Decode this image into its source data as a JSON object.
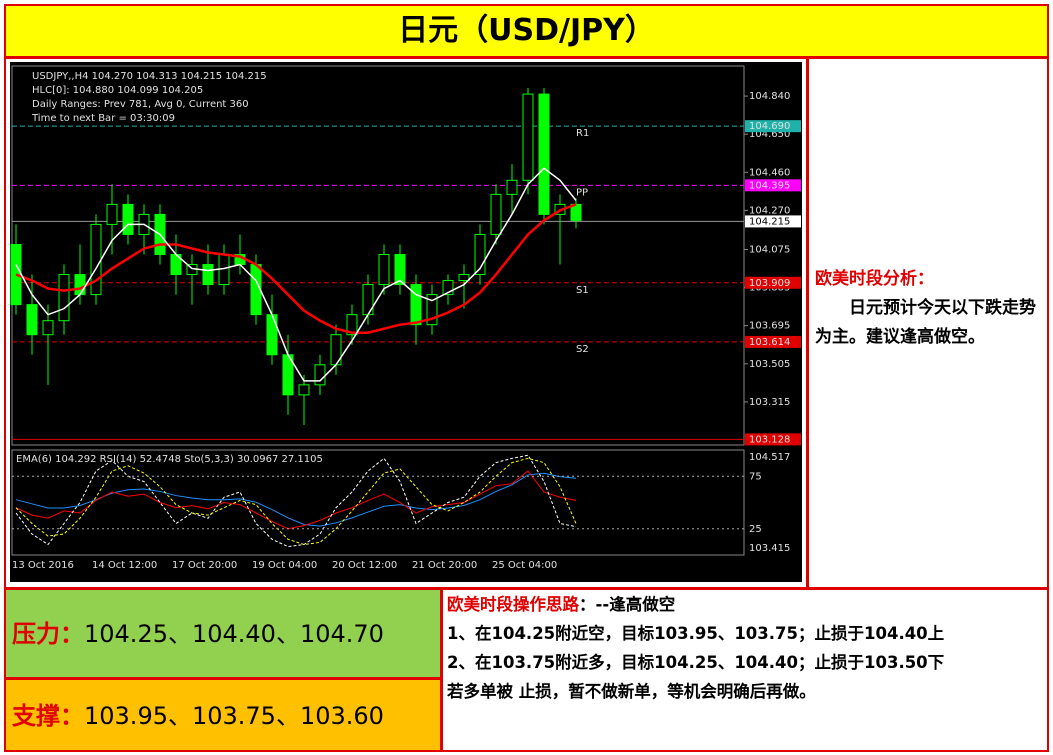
{
  "title": "日元（USD/JPY）",
  "side": {
    "heading": "欧美时段分析：",
    "text": "日元预计今天以下跌走势为主。建议逢高做空。"
  },
  "pressure": {
    "label": "压力：",
    "text": "104.25、104.40、104.70"
  },
  "support": {
    "label": "支撑：",
    "text": "103.95、103.75、103.60"
  },
  "ops": {
    "heading": "欧美时段操作思路",
    "heading_rest": "：--逢高做空",
    "lines": [
      "1、在104.25附近空，目标103.95、103.75；止损于104.40上",
      "2、在103.75附近多，目标104.25、104.40；止损于103.50下",
      "若多单被 止损，暂不做新单，等机会明确后再做。"
    ]
  },
  "chart_data": {
    "type": "candlestick",
    "header": [
      "USDJPY,,H4  104.270 104.313 104.215 104.215",
      "HLC[0]: 104.880 104.099 104.205",
      "Daily Ranges:  Prev 781,  Avg 0,  Current 360",
      "Time to next Bar = 03:30:09"
    ],
    "osc_header": "EMA(6) 104.292  RSI(14) 52.4748  Sto(5,3,3) 30.0967 27.1105",
    "x_labels": [
      "13 Oct 2016",
      "14 Oct 12:00",
      "17 Oct 20:00",
      "19 Oct 04:00",
      "20 Oct 12:00",
      "21 Oct 20:00",
      "25 Oct 04:00"
    ],
    "ylim": [
      103.1,
      104.99
    ],
    "yticks": [
      {
        "value": 104.84,
        "label": "104.840"
      },
      {
        "value": 104.65,
        "label": "104.650"
      },
      {
        "value": 104.46,
        "label": "104.460"
      },
      {
        "value": 104.27,
        "label": "104.270"
      },
      {
        "value": 104.075,
        "label": "104.075"
      },
      {
        "value": 103.885,
        "label": "103.885"
      },
      {
        "value": 103.695,
        "label": "103.695"
      },
      {
        "value": 103.505,
        "label": "103.505"
      },
      {
        "value": 103.315,
        "label": "103.315"
      }
    ],
    "levels": [
      {
        "value": 104.69,
        "label": "104.690",
        "name": "R1",
        "color": "#20b2aa"
      },
      {
        "value": 104.395,
        "label": "104.395",
        "name": "PP",
        "color": "#ff00ff"
      },
      {
        "value": 103.909,
        "label": "103.909",
        "name": "S1",
        "color": "#e00000"
      },
      {
        "value": 103.614,
        "label": "103.614",
        "name": "S2",
        "color": "#e00000"
      },
      {
        "value": 103.128,
        "label": "103.128",
        "color": "#e00000"
      }
    ],
    "current": {
      "value": 104.215,
      "label": "104.215"
    },
    "candles": [
      {
        "open": 104.1,
        "high": 104.2,
        "low": 103.75,
        "close": 103.8
      },
      {
        "open": 103.8,
        "high": 103.95,
        "low": 103.55,
        "close": 103.65
      },
      {
        "open": 103.65,
        "high": 103.8,
        "low": 103.4,
        "close": 103.72
      },
      {
        "open": 103.72,
        "high": 104.0,
        "low": 103.65,
        "close": 103.95
      },
      {
        "open": 103.95,
        "high": 104.1,
        "low": 103.8,
        "close": 103.85
      },
      {
        "open": 103.85,
        "high": 104.25,
        "low": 103.8,
        "close": 104.2
      },
      {
        "open": 104.2,
        "high": 104.4,
        "low": 104.05,
        "close": 104.3
      },
      {
        "open": 104.3,
        "high": 104.35,
        "low": 104.1,
        "close": 104.15
      },
      {
        "open": 104.15,
        "high": 104.3,
        "low": 104.05,
        "close": 104.25
      },
      {
        "open": 104.25,
        "high": 104.3,
        "low": 104.0,
        "close": 104.05
      },
      {
        "open": 104.05,
        "high": 104.15,
        "low": 103.85,
        "close": 103.95
      },
      {
        "open": 103.95,
        "high": 104.05,
        "low": 103.8,
        "close": 104.0
      },
      {
        "open": 104.0,
        "high": 104.1,
        "low": 103.85,
        "close": 103.9
      },
      {
        "open": 103.9,
        "high": 104.1,
        "low": 103.85,
        "close": 104.05
      },
      {
        "open": 104.05,
        "high": 104.15,
        "low": 103.95,
        "close": 104.0
      },
      {
        "open": 104.0,
        "high": 104.05,
        "low": 103.7,
        "close": 103.75
      },
      {
        "open": 103.75,
        "high": 103.85,
        "low": 103.5,
        "close": 103.55
      },
      {
        "open": 103.55,
        "high": 103.65,
        "low": 103.25,
        "close": 103.35
      },
      {
        "open": 103.35,
        "high": 103.45,
        "low": 103.2,
        "close": 103.4
      },
      {
        "open": 103.4,
        "high": 103.55,
        "low": 103.35,
        "close": 103.5
      },
      {
        "open": 103.5,
        "high": 103.7,
        "low": 103.45,
        "close": 103.65
      },
      {
        "open": 103.65,
        "high": 103.8,
        "low": 103.6,
        "close": 103.75
      },
      {
        "open": 103.75,
        "high": 103.95,
        "low": 103.7,
        "close": 103.9
      },
      {
        "open": 103.9,
        "high": 104.1,
        "low": 103.85,
        "close": 104.05
      },
      {
        "open": 104.05,
        "high": 104.1,
        "low": 103.85,
        "close": 103.9
      },
      {
        "open": 103.9,
        "high": 103.95,
        "low": 103.6,
        "close": 103.7
      },
      {
        "open": 103.7,
        "high": 103.9,
        "low": 103.65,
        "close": 103.85
      },
      {
        "open": 103.85,
        "high": 103.95,
        "low": 103.8,
        "close": 103.92
      },
      {
        "open": 103.92,
        "high": 104.0,
        "low": 103.78,
        "close": 103.95
      },
      {
        "open": 103.95,
        "high": 104.2,
        "low": 103.9,
        "close": 104.15
      },
      {
        "open": 104.15,
        "high": 104.4,
        "low": 104.1,
        "close": 104.35
      },
      {
        "open": 104.35,
        "high": 104.5,
        "low": 104.25,
        "close": 104.42
      },
      {
        "open": 104.42,
        "high": 104.88,
        "low": 104.35,
        "close": 104.85
      },
      {
        "open": 104.85,
        "high": 104.88,
        "low": 104.2,
        "close": 104.25
      },
      {
        "open": 104.25,
        "high": 104.35,
        "low": 104.0,
        "close": 104.3
      },
      {
        "open": 104.3,
        "high": 104.33,
        "low": 104.18,
        "close": 104.22
      }
    ],
    "bull_color": "#00ff00",
    "bear_color": "#00ff00",
    "series": [
      {
        "color": "#ff0000",
        "values": [
          103.95,
          103.92,
          103.88,
          103.87,
          103.88,
          103.92,
          103.98,
          104.03,
          104.08,
          104.1,
          104.1,
          104.08,
          104.06,
          104.05,
          104.04,
          104.0,
          103.93,
          103.85,
          103.77,
          103.72,
          103.68,
          103.66,
          103.66,
          103.68,
          103.7,
          103.71,
          103.73,
          103.76,
          103.8,
          103.86,
          103.95,
          104.05,
          104.15,
          104.22,
          104.27,
          104.3
        ]
      },
      {
        "color": "#ffffff",
        "values": [
          104.0,
          103.85,
          103.75,
          103.78,
          103.85,
          103.98,
          104.12,
          104.2,
          104.2,
          104.15,
          104.05,
          103.98,
          103.97,
          103.98,
          104.0,
          103.92,
          103.75,
          103.55,
          103.42,
          103.42,
          103.5,
          103.62,
          103.75,
          103.88,
          103.92,
          103.85,
          103.82,
          103.86,
          103.9,
          103.98,
          104.12,
          104.25,
          104.4,
          104.48,
          104.42,
          104.32
        ]
      }
    ],
    "osc": {
      "ylim": [
        0,
        100
      ],
      "yticks": [
        75,
        25
      ],
      "y2lim": [
        103.33,
        104.602
      ],
      "y2ticks": [
        {
          "value": 104.517,
          "label": "104.517"
        },
        {
          "value": 103.415,
          "label": "103.415"
        }
      ],
      "series": [
        {
          "color": "#1e90ff",
          "axis": "y2",
          "values": [
            104.0,
            103.95,
            103.9,
            103.9,
            103.93,
            104.0,
            104.08,
            104.12,
            104.13,
            104.1,
            104.05,
            104.02,
            104.0,
            104.0,
            104.01,
            103.97,
            103.88,
            103.78,
            103.7,
            103.68,
            103.72,
            103.78,
            103.85,
            103.92,
            103.94,
            103.9,
            103.88,
            103.9,
            103.93,
            104.0,
            104.1,
            104.18,
            104.3,
            104.32,
            104.28,
            104.26
          ]
        },
        {
          "color": "#ff0000",
          "values": [
            45,
            38,
            35,
            42,
            40,
            52,
            60,
            56,
            58,
            50,
            45,
            47,
            44,
            50,
            48,
            40,
            32,
            25,
            28,
            33,
            40,
            45,
            52,
            58,
            50,
            40,
            46,
            48,
            50,
            58,
            66,
            68,
            80,
            60,
            55,
            52
          ]
        },
        {
          "color": "#ffffff",
          "dash": true,
          "values": [
            40,
            20,
            10,
            30,
            50,
            80,
            90,
            75,
            70,
            50,
            30,
            40,
            35,
            55,
            60,
            30,
            15,
            8,
            10,
            20,
            45,
            60,
            80,
            92,
            70,
            30,
            40,
            50,
            55,
            75,
            88,
            92,
            95,
            70,
            30,
            27
          ]
        },
        {
          "color": "#ffff00",
          "dash": true,
          "values": [
            45,
            30,
            18,
            20,
            35,
            55,
            80,
            85,
            78,
            65,
            48,
            40,
            38,
            45,
            52,
            48,
            30,
            15,
            10,
            12,
            25,
            42,
            60,
            78,
            82,
            65,
            48,
            42,
            50,
            60,
            75,
            88,
            92,
            88,
            65,
            30
          ]
        }
      ]
    }
  }
}
